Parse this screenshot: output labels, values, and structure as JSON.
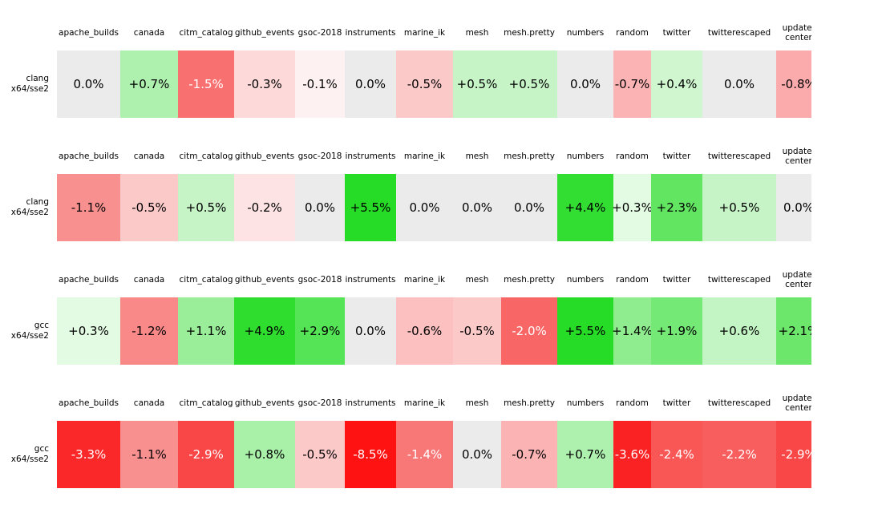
{
  "chart_data": {
    "type": "heatmap",
    "title": "",
    "columns": [
      "apache_builds",
      "canada",
      "citm_catalog",
      "github_events",
      "gsoc-2018",
      "instruments",
      "marine_ik",
      "mesh",
      "mesh.pretty",
      "numbers",
      "random",
      "twitter",
      "twitterescaped",
      "update-center"
    ],
    "rows": [
      {
        "group": "clang",
        "variant": "x64/sse2",
        "values_pct": [
          0.0,
          0.7,
          -1.5,
          -0.3,
          -0.1,
          0.0,
          -0.5,
          0.5,
          0.5,
          0.0,
          -0.7,
          0.4,
          0.0,
          -0.8
        ]
      },
      {
        "group": "clang",
        "variant": "x64/sse2",
        "values_pct": [
          -1.1,
          -0.5,
          0.5,
          -0.2,
          0.0,
          5.5,
          0.0,
          0.0,
          0.0,
          4.4,
          0.3,
          2.3,
          0.5,
          0.0
        ]
      },
      {
        "group": "gcc",
        "variant": "x64/sse2",
        "values_pct": [
          0.3,
          -1.2,
          1.1,
          4.9,
          2.9,
          0.0,
          -0.6,
          -0.5,
          -2.0,
          5.5,
          1.4,
          1.9,
          0.6,
          2.1
        ]
      },
      {
        "group": "gcc",
        "variant": "x64/sse2",
        "values_pct": [
          -3.3,
          -1.1,
          -2.9,
          0.8,
          -0.5,
          -8.5,
          -1.4,
          0.0,
          -0.7,
          0.7,
          -3.6,
          -2.4,
          -2.2,
          -2.9
        ]
      }
    ],
    "color_scale": {
      "negative": "red",
      "zero": "#ebebeb",
      "positive": "green"
    },
    "legend_position": "none",
    "grid": false
  },
  "heatmap": {
    "columns": [
      "apache_builds",
      "canada",
      "citm_catalog",
      "github_events",
      "gsoc-2018",
      "instruments",
      "marine_ik",
      "mesh",
      "mesh.pretty",
      "numbers",
      "random",
      "twitter",
      "twitterescaped",
      "update-\ncenter"
    ],
    "sections": [
      {
        "compiler": "clang",
        "arch": "x64/sse2",
        "cells": [
          {
            "text": "0.0%",
            "bg": "#ebebeb",
            "fg": "#000000"
          },
          {
            "text": "+0.7%",
            "bg": "#aef0ae",
            "fg": "#000000"
          },
          {
            "text": "-1.5%",
            "bg": "#f97070",
            "fg": "#ffffff"
          },
          {
            "text": "-0.3%",
            "bg": "#fdd9d9",
            "fg": "#000000"
          },
          {
            "text": "-0.1%",
            "bg": "#fef1f1",
            "fg": "#000000"
          },
          {
            "text": "0.0%",
            "bg": "#ebebeb",
            "fg": "#000000"
          },
          {
            "text": "-0.5%",
            "bg": "#fcc9c9",
            "fg": "#000000"
          },
          {
            "text": "+0.5%",
            "bg": "#c6f4c6",
            "fg": "#000000"
          },
          {
            "text": "+0.5%",
            "bg": "#c6f4c6",
            "fg": "#000000"
          },
          {
            "text": "0.0%",
            "bg": "#ebebeb",
            "fg": "#000000"
          },
          {
            "text": "-0.7%",
            "bg": "#fbb3b3",
            "fg": "#000000"
          },
          {
            "text": "+0.4%",
            "bg": "#cff6cf",
            "fg": "#000000"
          },
          {
            "text": "0.0%",
            "bg": "#ebebeb",
            "fg": "#000000"
          },
          {
            "text": "-0.8%",
            "bg": "#fbabab",
            "fg": "#000000"
          }
        ]
      },
      {
        "compiler": "clang",
        "arch": "x64/sse2",
        "cells": [
          {
            "text": "-1.1%",
            "bg": "#f99090",
            "fg": "#000000"
          },
          {
            "text": "-0.5%",
            "bg": "#fcc9c9",
            "fg": "#000000"
          },
          {
            "text": "+0.5%",
            "bg": "#c6f4c6",
            "fg": "#000000"
          },
          {
            "text": "-0.2%",
            "bg": "#fde3e3",
            "fg": "#000000"
          },
          {
            "text": "0.0%",
            "bg": "#ebebeb",
            "fg": "#000000"
          },
          {
            "text": "+5.5%",
            "bg": "#26dc26",
            "fg": "#000000"
          },
          {
            "text": "0.0%",
            "bg": "#ebebeb",
            "fg": "#000000"
          },
          {
            "text": "0.0%",
            "bg": "#ebebeb",
            "fg": "#000000"
          },
          {
            "text": "0.0%",
            "bg": "#ebebeb",
            "fg": "#000000"
          },
          {
            "text": "+4.4%",
            "bg": "#33de33",
            "fg": "#000000"
          },
          {
            "text": "+0.3%",
            "bg": "#e3fae3",
            "fg": "#000000"
          },
          {
            "text": "+2.3%",
            "bg": "#62e662",
            "fg": "#000000"
          },
          {
            "text": "+0.5%",
            "bg": "#c6f4c6",
            "fg": "#000000"
          },
          {
            "text": "0.0%",
            "bg": "#ebebeb",
            "fg": "#000000"
          }
        ]
      },
      {
        "compiler": "gcc",
        "arch": "x64/sse2",
        "cells": [
          {
            "text": "+0.3%",
            "bg": "#e3fae3",
            "fg": "#000000"
          },
          {
            "text": "-1.2%",
            "bg": "#f98888",
            "fg": "#000000"
          },
          {
            "text": "+1.1%",
            "bg": "#9aee9a",
            "fg": "#000000"
          },
          {
            "text": "+4.9%",
            "bg": "#2edd2e",
            "fg": "#000000"
          },
          {
            "text": "+2.9%",
            "bg": "#55e455",
            "fg": "#000000"
          },
          {
            "text": "0.0%",
            "bg": "#ebebeb",
            "fg": "#000000"
          },
          {
            "text": "-0.6%",
            "bg": "#fcc0c0",
            "fg": "#000000"
          },
          {
            "text": "-0.5%",
            "bg": "#fcc9c9",
            "fg": "#000000"
          },
          {
            "text": "-2.0%",
            "bg": "#f86666",
            "fg": "#ffffff"
          },
          {
            "text": "+5.5%",
            "bg": "#26dc26",
            "fg": "#000000"
          },
          {
            "text": "+1.4%",
            "bg": "#8fed8f",
            "fg": "#000000"
          },
          {
            "text": "+1.9%",
            "bg": "#75e975",
            "fg": "#000000"
          },
          {
            "text": "+0.6%",
            "bg": "#c3f4c3",
            "fg": "#000000"
          },
          {
            "text": "+2.1%",
            "bg": "#6ce76c",
            "fg": "#000000"
          }
        ]
      },
      {
        "compiler": "gcc",
        "arch": "x64/sse2",
        "cells": [
          {
            "text": "-3.3%",
            "bg": "#fa2828",
            "fg": "#ffffff"
          },
          {
            "text": "-1.1%",
            "bg": "#f99090",
            "fg": "#000000"
          },
          {
            "text": "-2.9%",
            "bg": "#f94646",
            "fg": "#ffffff"
          },
          {
            "text": "+0.8%",
            "bg": "#a9f0a9",
            "fg": "#000000"
          },
          {
            "text": "-0.5%",
            "bg": "#fcc9c9",
            "fg": "#000000"
          },
          {
            "text": "-8.5%",
            "bg": "#fe1212",
            "fg": "#ffffff"
          },
          {
            "text": "-1.4%",
            "bg": "#f87878",
            "fg": "#ffffff"
          },
          {
            "text": "0.0%",
            "bg": "#ebebeb",
            "fg": "#000000"
          },
          {
            "text": "-0.7%",
            "bg": "#fbb3b3",
            "fg": "#000000"
          },
          {
            "text": "+0.7%",
            "bg": "#aef0ae",
            "fg": "#000000"
          },
          {
            "text": "-3.6%",
            "bg": "#fa2222",
            "fg": "#ffffff"
          },
          {
            "text": "-2.4%",
            "bg": "#f95656",
            "fg": "#ffffff"
          },
          {
            "text": "-2.2%",
            "bg": "#f95e5e",
            "fg": "#ffffff"
          },
          {
            "text": "-2.9%",
            "bg": "#f94646",
            "fg": "#ffffff"
          }
        ]
      }
    ],
    "colors": {
      "background": "#ffffff",
      "zero_cell": "#ebebeb",
      "text_dark": "#000000",
      "text_light": "#ffffff"
    }
  }
}
